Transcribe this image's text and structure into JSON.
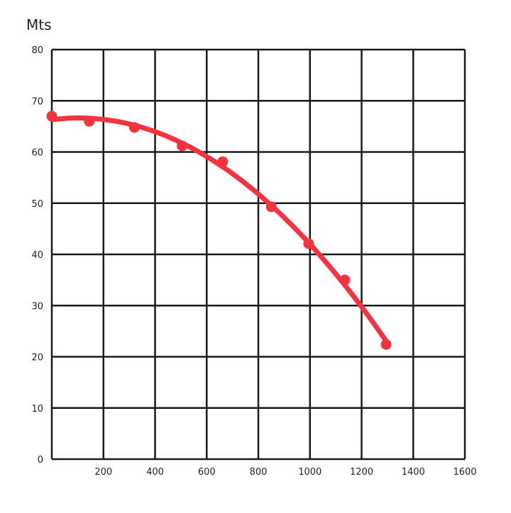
{
  "chart_data": {
    "type": "line",
    "title": "",
    "xlabel": "",
    "ylabel": "Mts",
    "xlim": [
      0,
      1600
    ],
    "ylim": [
      0,
      80
    ],
    "x_ticks": [
      200,
      400,
      600,
      800,
      1000,
      1200,
      1400,
      1600
    ],
    "y_ticks": [
      0,
      10,
      20,
      30,
      40,
      50,
      60,
      70,
      80
    ],
    "grid": true,
    "legend": "none",
    "series": [
      {
        "color": "#f5333f",
        "x": [
          0,
          145,
          320,
          505,
          662,
          850,
          995,
          1135,
          1295
        ],
        "y": [
          67.0,
          66.0,
          64.8,
          61.2,
          58.1,
          49.3,
          42.1,
          35.0,
          22.4
        ],
        "trendline": "quadratic"
      }
    ]
  }
}
